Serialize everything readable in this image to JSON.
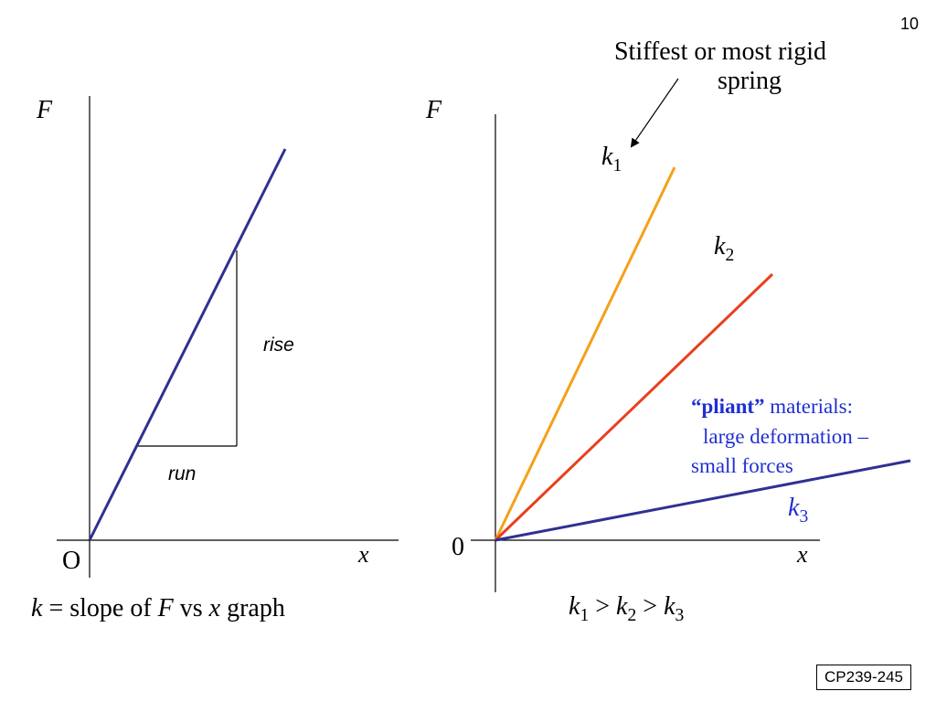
{
  "slide": {
    "page_number": "10",
    "code": "CP239-245"
  },
  "left_graph": {
    "y_axis_label": "F",
    "x_axis_label": "x",
    "origin_label": "O",
    "rise_label": "rise",
    "run_label": "run",
    "caption": {
      "k": "k",
      "text1": " = slope of ",
      "F": "F",
      "text2": " vs ",
      "x": "x",
      "text3": " graph"
    },
    "line_color": "#2e3192"
  },
  "right_graph": {
    "y_axis_label": "F",
    "x_axis_label": "x",
    "origin_label": "0",
    "annotation_line1": "Stiffest or most rigid",
    "annotation_line2": "spring",
    "lines": [
      {
        "k": "k",
        "sub": "1",
        "color": "#f5a01a"
      },
      {
        "k": "k",
        "sub": "2",
        "color": "#e8401c"
      },
      {
        "k": "k",
        "sub": "3",
        "color": "#2e3192"
      }
    ],
    "pliant": {
      "bold": "“pliant”",
      "rest1": " materials:",
      "line2": "large deformation –",
      "line3": "small forces",
      "color": "#1f2fd1"
    },
    "inequality": {
      "k1": "k",
      "s1": "1",
      "gt1": " > ",
      "k2": "k",
      "s2": "2",
      "gt2": " > ",
      "k3": "k",
      "s3": "3"
    }
  }
}
